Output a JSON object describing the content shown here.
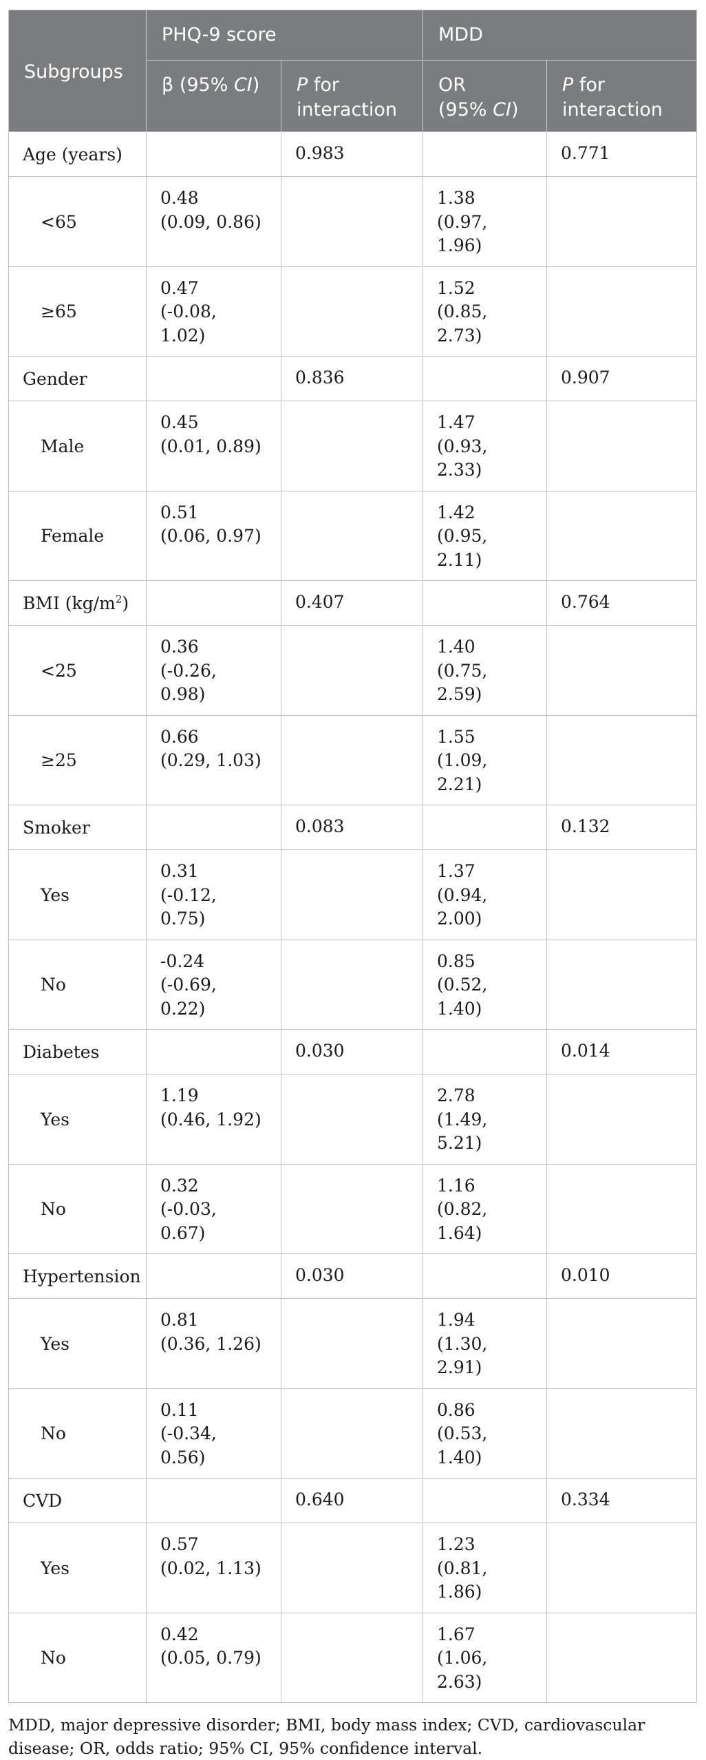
{
  "header": {
    "subgroups": "Subgroups",
    "phq9": "PHQ-9 score",
    "mdd": "MDD",
    "beta_prefix": "β (95% ",
    "ci": "CI",
    "close_paren": ")",
    "p_letter": "P",
    "for_interaction": " for interaction",
    "or_line1": "OR",
    "or_line2_prefix": "(95% "
  },
  "groups": [
    {
      "label": "Age (years)",
      "p_phq": "0.983",
      "p_mdd": "0.771",
      "rows": [
        {
          "label": "<65",
          "beta": "0.48",
          "beta_ci": "(0.09, 0.86)",
          "or": "1.38",
          "or_ci": "(0.97, 1.96)"
        },
        {
          "label": "≥65",
          "beta": "0.47",
          "beta_ci": "(-0.08, 1.02)",
          "or": "1.52",
          "or_ci": "(0.85, 2.73)"
        }
      ]
    },
    {
      "label": "Gender",
      "p_phq": "0.836",
      "p_mdd": "0.907",
      "rows": [
        {
          "label": "Male",
          "beta": "0.45",
          "beta_ci": "(0.01, 0.89)",
          "or": "1.47",
          "or_ci": "(0.93, 2.33)"
        },
        {
          "label": "Female",
          "beta": "0.51",
          "beta_ci": "(0.06, 0.97)",
          "or": "1.42",
          "or_ci": "(0.95, 2.11)"
        }
      ]
    },
    {
      "label": "BMI (kg/m",
      "label_sup": "2",
      "label_suffix": ")",
      "p_phq": "0.407",
      "p_mdd": "0.764",
      "rows": [
        {
          "label": "<25",
          "beta": "0.36",
          "beta_ci": "(-0.26, 0.98)",
          "or": "1.40",
          "or_ci": "(0.75, 2.59)"
        },
        {
          "label": "≥25",
          "beta": "0.66",
          "beta_ci": "(0.29, 1.03)",
          "or": "1.55",
          "or_ci": "(1.09, 2.21)"
        }
      ]
    },
    {
      "label": "Smoker",
      "p_phq": "0.083",
      "p_mdd": "0.132",
      "rows": [
        {
          "label": "Yes",
          "beta": "0.31",
          "beta_ci": "(-0.12, 0.75)",
          "or": "1.37",
          "or_ci": "(0.94, 2.00)"
        },
        {
          "label": "No",
          "beta": "-0.24",
          "beta_ci": "(-0.69, 0.22)",
          "or": "0.85",
          "or_ci": "(0.52, 1.40)"
        }
      ]
    },
    {
      "label": "Diabetes",
      "p_phq": "0.030",
      "p_mdd": "0.014",
      "rows": [
        {
          "label": "Yes",
          "beta": "1.19",
          "beta_ci": "(0.46, 1.92)",
          "or": "2.78",
          "or_ci": "(1.49, 5.21)"
        },
        {
          "label": "No",
          "beta": "0.32",
          "beta_ci": "(-0.03, 0.67)",
          "or": "1.16",
          "or_ci": "(0.82, 1.64)"
        }
      ]
    },
    {
      "label": "Hypertension",
      "p_phq": "0.030",
      "p_mdd": "0.010",
      "rows": [
        {
          "label": "Yes",
          "beta": "0.81",
          "beta_ci": "(0.36, 1.26)",
          "or": "1.94",
          "or_ci": "(1.30, 2.91)"
        },
        {
          "label": "No",
          "beta": "0.11",
          "beta_ci": "(-0.34, 0.56)",
          "or": "0.86",
          "or_ci": "(0.53, 1.40)"
        }
      ]
    },
    {
      "label": "CVD",
      "p_phq": "0.640",
      "p_mdd": "0.334",
      "rows": [
        {
          "label": "Yes",
          "beta": "0.57",
          "beta_ci": "(0.02, 1.13)",
          "or": "1.23",
          "or_ci": "(0.81, 1.86)"
        },
        {
          "label": "No",
          "beta": "0.42",
          "beta_ci": "(0.05, 0.79)",
          "or": "1.67",
          "or_ci": "(1.06, 2.63)"
        }
      ]
    }
  ],
  "footnote": "MDD, major depressive disorder; BMI, body mass index; CVD, cardiovascular disease; OR, odds ratio; 95% CI, 95% confidence interval."
}
